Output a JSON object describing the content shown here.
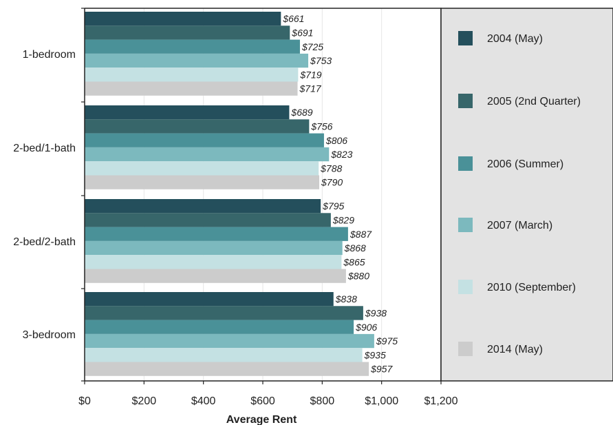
{
  "chart_data": {
    "type": "bar",
    "orientation": "horizontal",
    "categories": [
      "1-bedroom",
      "2-bed/1-bath",
      "2-bed/2-bath",
      "3-bedroom"
    ],
    "series": [
      {
        "name": "2004 (May)",
        "color": "#244f5c",
        "values": [
          661,
          689,
          795,
          838
        ],
        "labels": [
          "$661",
          "$689",
          "$795",
          "$838"
        ]
      },
      {
        "name": "2005 (2nd Quarter)",
        "color": "#37666a",
        "values": [
          691,
          756,
          829,
          938
        ],
        "labels": [
          "$691",
          "$756",
          "$829",
          "$938"
        ]
      },
      {
        "name": "2006 (Summer)",
        "color": "#4a9198",
        "values": [
          725,
          806,
          887,
          906
        ],
        "labels": [
          "$725",
          "$806",
          "$887",
          "$906"
        ]
      },
      {
        "name": "2007 (March)",
        "color": "#7cb9be",
        "values": [
          753,
          823,
          868,
          975
        ],
        "labels": [
          "$753",
          "$823",
          "$868",
          "$975"
        ]
      },
      {
        "name": "2010 (September)",
        "color": "#c4e1e3",
        "values": [
          719,
          788,
          865,
          935
        ],
        "labels": [
          "$719",
          "$788",
          "$865",
          "$935"
        ]
      },
      {
        "name": "2014 (May)",
        "color": "#cccccc",
        "values": [
          717,
          790,
          880,
          957
        ],
        "labels": [
          "$717",
          "$790",
          "$880",
          "$957"
        ]
      }
    ],
    "xlabel": "Average Rent",
    "ylabel": "",
    "xlim": [
      0,
      1200
    ],
    "xticks": [
      0,
      200,
      400,
      600,
      800,
      1000,
      1200
    ],
    "xtick_labels": [
      "$0",
      "$200",
      "$400",
      "$600",
      "$800",
      "$1,000",
      "$1,200"
    ],
    "grid": true,
    "legend_position": "right",
    "legend_background": "#e3e3e3"
  }
}
